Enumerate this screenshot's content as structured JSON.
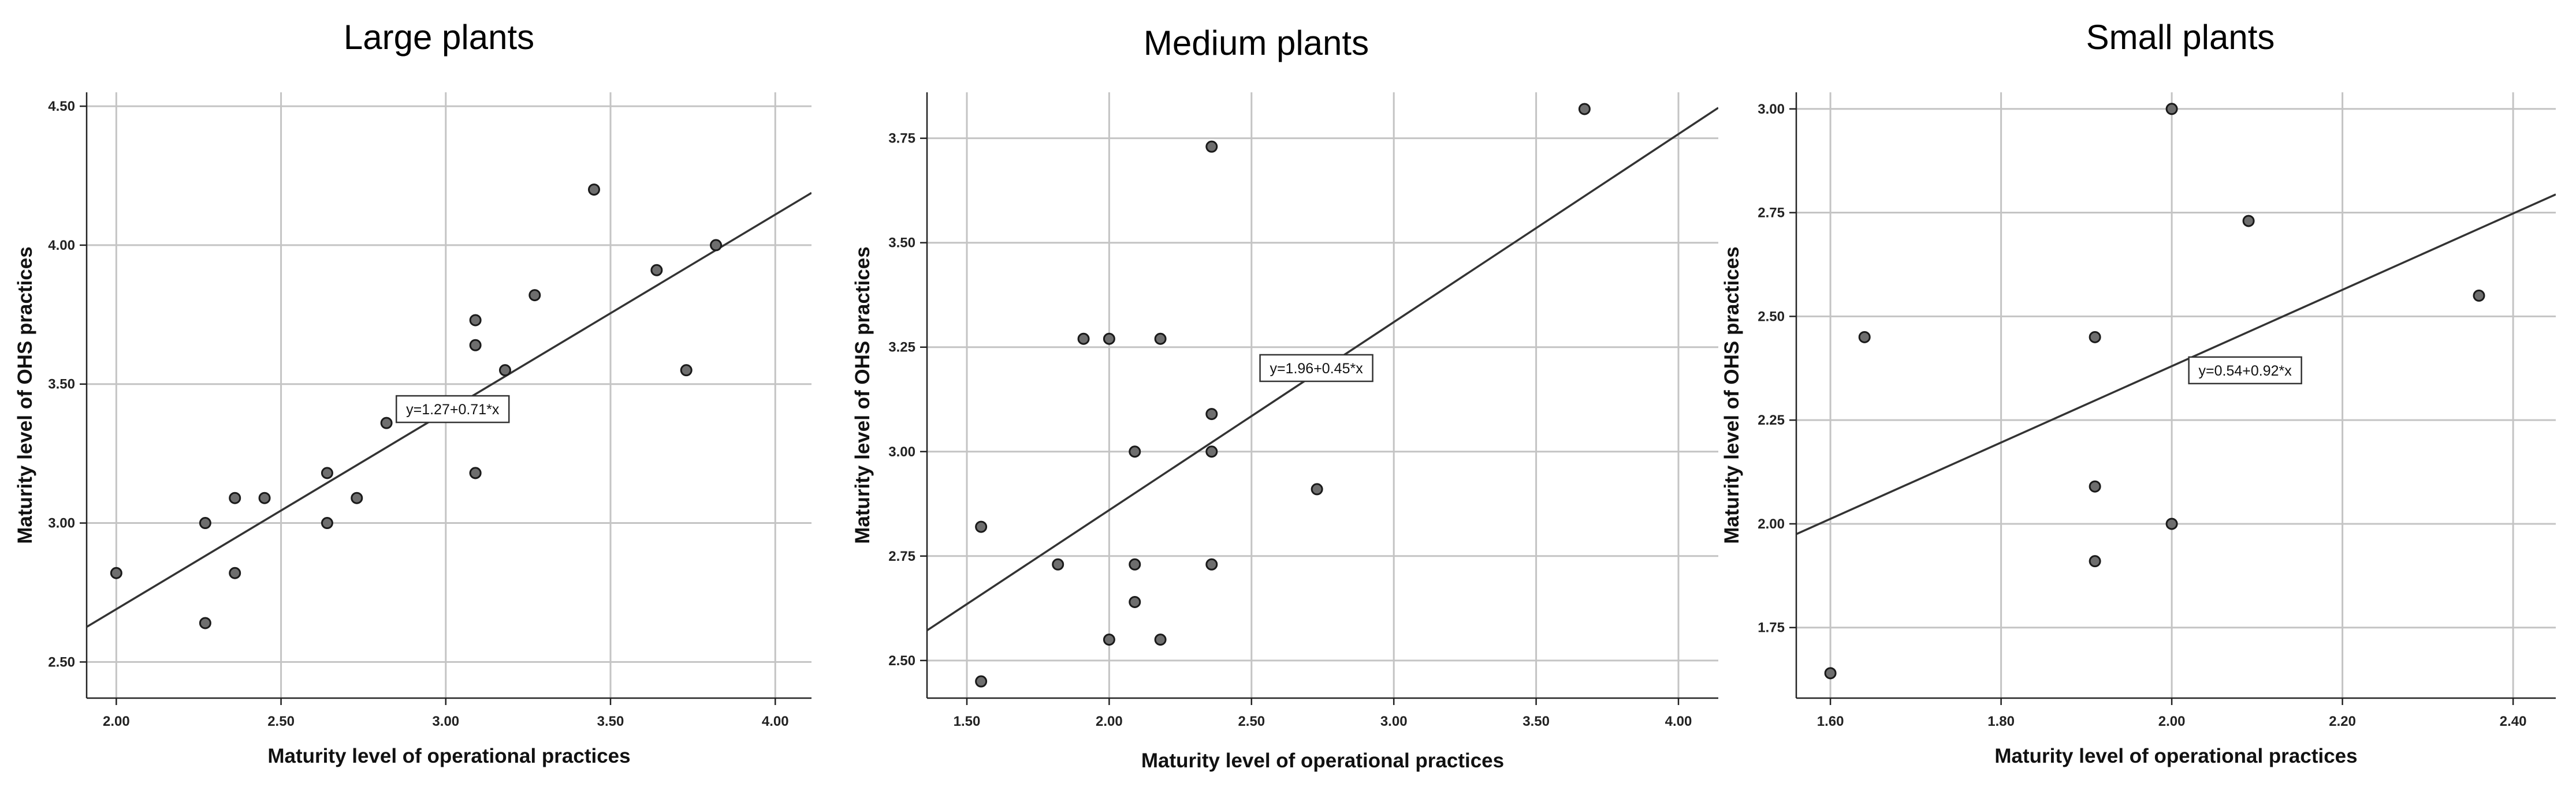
{
  "chart_data": [
    {
      "type": "scatter",
      "title": "Large plants",
      "xlabel": "Maturity level of operational practices",
      "ylabel": "Maturity level of OHS practices",
      "xlim": [
        1.91,
        4.11
      ],
      "ylim": [
        2.37,
        4.55
      ],
      "xticks": [
        2.0,
        2.5,
        3.0,
        3.5,
        4.0
      ],
      "xtick_labels": [
        "2.00",
        "2.50",
        "3.00",
        "3.50",
        "4.00"
      ],
      "yticks": [
        2.5,
        3.0,
        3.5,
        4.0,
        4.5
      ],
      "ytick_labels": [
        "2.50",
        "3.00",
        "3.50",
        "4.00",
        "4.50"
      ],
      "grid": true,
      "fit_line": {
        "label": "y=1.27+0.71*x",
        "intercept": 1.27,
        "slope": 0.71,
        "label_at": [
          2.85,
          3.41
        ]
      },
      "points": [
        {
          "x": 2.0,
          "y": 2.82
        },
        {
          "x": 2.27,
          "y": 3.0
        },
        {
          "x": 2.27,
          "y": 2.64
        },
        {
          "x": 2.36,
          "y": 3.09
        },
        {
          "x": 2.36,
          "y": 2.82
        },
        {
          "x": 2.45,
          "y": 3.09
        },
        {
          "x": 2.64,
          "y": 3.18
        },
        {
          "x": 2.64,
          "y": 3.0
        },
        {
          "x": 2.73,
          "y": 3.09
        },
        {
          "x": 2.82,
          "y": 3.36
        },
        {
          "x": 3.09,
          "y": 3.73
        },
        {
          "x": 3.09,
          "y": 3.64
        },
        {
          "x": 3.09,
          "y": 3.18
        },
        {
          "x": 3.09,
          "y": 3.18
        },
        {
          "x": 3.18,
          "y": 3.55
        },
        {
          "x": 3.27,
          "y": 3.82
        },
        {
          "x": 3.45,
          "y": 4.2
        },
        {
          "x": 3.64,
          "y": 3.91
        },
        {
          "x": 3.73,
          "y": 3.55
        },
        {
          "x": 3.82,
          "y": 4.0
        }
      ]
    },
    {
      "type": "scatter",
      "title": "Medium plants",
      "xlabel": "Maturity level of operational practices",
      "ylabel": "Maturity level of OHS practices",
      "xlim": [
        1.36,
        4.14
      ],
      "ylim": [
        2.41,
        3.86
      ],
      "xticks": [
        1.5,
        2.0,
        2.5,
        3.0,
        3.5,
        4.0
      ],
      "xtick_labels": [
        "1.50",
        "2.00",
        "2.50",
        "3.00",
        "3.50",
        "4.00"
      ],
      "yticks": [
        2.5,
        2.75,
        3.0,
        3.25,
        3.5,
        3.75
      ],
      "ytick_labels": [
        "2.50",
        "2.75",
        "3.00",
        "3.25",
        "3.50",
        "3.75"
      ],
      "grid": true,
      "fit_line": {
        "label": "y=1.96+0.45*x",
        "intercept": 1.96,
        "slope": 0.45,
        "label_at": [
          2.53,
          3.2
        ]
      },
      "points": [
        {
          "x": 1.55,
          "y": 2.82
        },
        {
          "x": 1.55,
          "y": 2.45
        },
        {
          "x": 1.82,
          "y": 2.73
        },
        {
          "x": 1.91,
          "y": 3.27
        },
        {
          "x": 2.0,
          "y": 3.27
        },
        {
          "x": 2.0,
          "y": 2.55
        },
        {
          "x": 2.09,
          "y": 3.0
        },
        {
          "x": 2.09,
          "y": 2.73
        },
        {
          "x": 2.09,
          "y": 2.64
        },
        {
          "x": 2.18,
          "y": 3.27
        },
        {
          "x": 2.18,
          "y": 2.55
        },
        {
          "x": 2.36,
          "y": 3.73
        },
        {
          "x": 2.36,
          "y": 3.09
        },
        {
          "x": 2.36,
          "y": 3.0
        },
        {
          "x": 2.36,
          "y": 2.73
        },
        {
          "x": 2.73,
          "y": 2.91
        },
        {
          "x": 3.67,
          "y": 3.82
        }
      ]
    },
    {
      "type": "scatter",
      "title": "Small plants",
      "xlabel": "Maturity level of operational practices",
      "ylabel": "Maturity level of OHS practices",
      "xlim": [
        1.56,
        2.45
      ],
      "ylim": [
        1.58,
        3.04
      ],
      "xticks": [
        1.6,
        1.8,
        2.0,
        2.2,
        2.4
      ],
      "xtick_labels": [
        "1.60",
        "1.80",
        "2.00",
        "2.20",
        "2.40"
      ],
      "yticks": [
        1.75,
        2.0,
        2.25,
        2.5,
        2.75,
        3.0
      ],
      "ytick_labels": [
        "1.75",
        "2.00",
        "2.25",
        "2.50",
        "2.75",
        "3.00"
      ],
      "grid": true,
      "fit_line": {
        "label": "y=0.54+0.92*x",
        "intercept": 0.54,
        "slope": 0.92,
        "label_at": [
          2.02,
          2.37
        ]
      },
      "points": [
        {
          "x": 1.6,
          "y": 1.64
        },
        {
          "x": 1.64,
          "y": 2.45
        },
        {
          "x": 1.91,
          "y": 2.45
        },
        {
          "x": 1.91,
          "y": 2.09
        },
        {
          "x": 1.91,
          "y": 1.91
        },
        {
          "x": 2.0,
          "y": 3.0
        },
        {
          "x": 2.0,
          "y": 2.0
        },
        {
          "x": 2.09,
          "y": 2.73
        },
        {
          "x": 2.36,
          "y": 2.55
        }
      ]
    }
  ]
}
